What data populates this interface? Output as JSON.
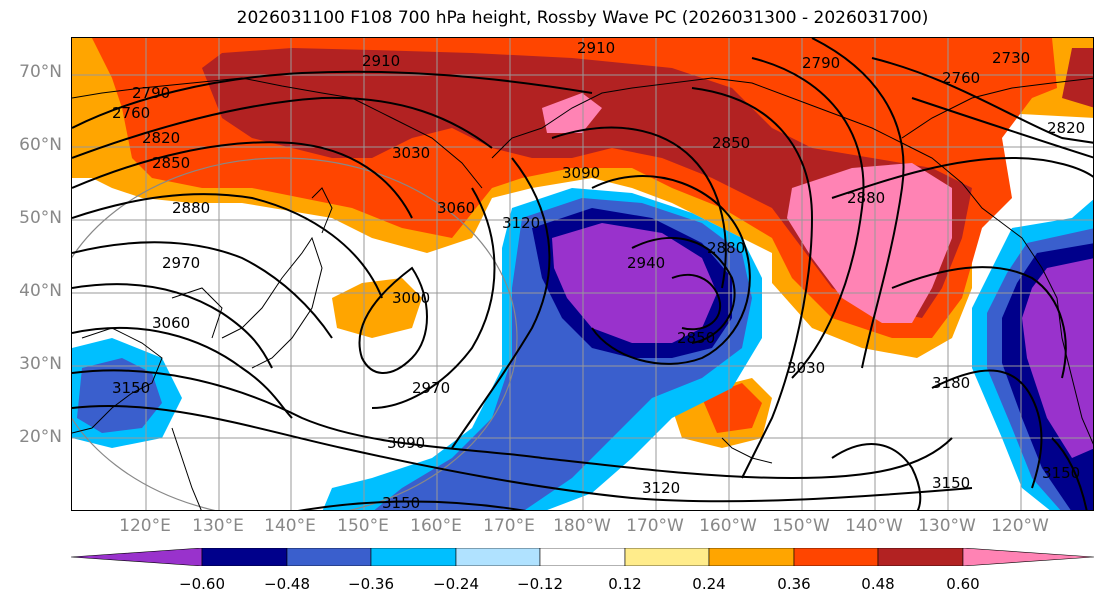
{
  "title": "2026031100 F108 700 hPa height, Rossby Wave PC (2026031300 - 2026031700)",
  "lat_labels": [
    "70°N",
    "60°N",
    "50°N",
    "40°N",
    "30°N",
    "20°N"
  ],
  "lon_labels": [
    "120°E",
    "130°E",
    "140°E",
    "150°E",
    "160°E",
    "170°E",
    "180°W",
    "170°W",
    "160°W",
    "150°W",
    "140°W",
    "130°W",
    "120°W"
  ],
  "colorbar": {
    "colors": [
      "#9932CC",
      "#00008B",
      "#3A5FCD",
      "#00BFFF",
      "#B0E2FF",
      "#FFFFFF",
      "#FFEC8B",
      "#FFA500",
      "#FF4500",
      "#B22222",
      "#FF83B4"
    ],
    "tick_labels": [
      "−0.60",
      "−0.48",
      "−0.36",
      "−0.24",
      "−0.12",
      "0.12",
      "0.24",
      "0.36",
      "0.48",
      "0.60"
    ]
  },
  "contour_labels": [
    "2910",
    "2910",
    "2790",
    "2760",
    "2730",
    "2760",
    "2790",
    "2820",
    "2850",
    "2850",
    "2820",
    "2880",
    "2880",
    "3030",
    "3060",
    "3090",
    "3120",
    "2940",
    "2880",
    "2850",
    "3000",
    "2970",
    "2970",
    "3060",
    "3030",
    "3180",
    "3150",
    "3090",
    "3120",
    "3150",
    "3150",
    "3150"
  ]
}
